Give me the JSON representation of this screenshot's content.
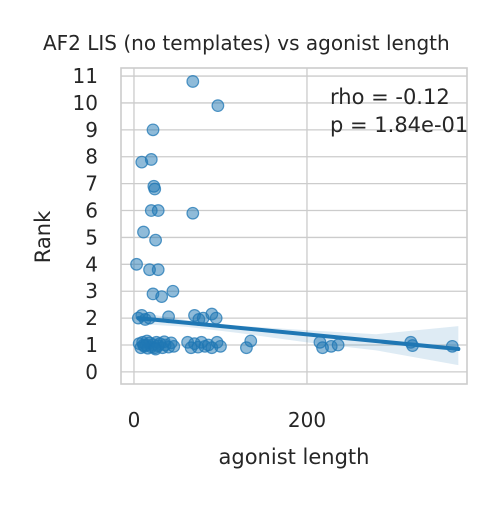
{
  "chart_data": {
    "type": "scatter",
    "title": "AF2 LIS (no templates) vs agonist length",
    "xlabel": "agonist length",
    "ylabel": "Rank",
    "xlim": [
      -15,
      385
    ],
    "ylim": [
      -0.45,
      11.3
    ],
    "x_ticks": [
      0,
      200
    ],
    "y_ticks": [
      0,
      1,
      2,
      3,
      4,
      5,
      6,
      7,
      8,
      9,
      10,
      11
    ],
    "grid": true,
    "annotations": [
      "rho = -0.12",
      "p = 1.84e-01"
    ],
    "regression": {
      "x_start": 5,
      "y_start": 2.0,
      "x_end": 375,
      "y_end": 0.85
    },
    "ci_band": [
      {
        "x": 5,
        "lower": 1.78,
        "upper": 2.22
      },
      {
        "x": 60,
        "lower": 1.68,
        "upper": 1.93
      },
      {
        "x": 120,
        "lower": 1.45,
        "upper": 1.72
      },
      {
        "x": 200,
        "lower": 1.1,
        "upper": 1.55
      },
      {
        "x": 280,
        "lower": 0.8,
        "upper": 1.4
      },
      {
        "x": 375,
        "lower": 0.25,
        "upper": 1.7
      }
    ],
    "points": [
      {
        "x": 68,
        "y": 10.8
      },
      {
        "x": 97,
        "y": 9.9
      },
      {
        "x": 22,
        "y": 9.0
      },
      {
        "x": 9,
        "y": 7.8
      },
      {
        "x": 20,
        "y": 7.9
      },
      {
        "x": 23,
        "y": 6.9
      },
      {
        "x": 24,
        "y": 6.8
      },
      {
        "x": 20,
        "y": 6.0
      },
      {
        "x": 28,
        "y": 6.0
      },
      {
        "x": 68,
        "y": 5.9
      },
      {
        "x": 11,
        "y": 5.2
      },
      {
        "x": 25,
        "y": 4.9
      },
      {
        "x": 3,
        "y": 4.0
      },
      {
        "x": 18,
        "y": 3.8
      },
      {
        "x": 28,
        "y": 3.8
      },
      {
        "x": 22,
        "y": 2.9
      },
      {
        "x": 32,
        "y": 2.8
      },
      {
        "x": 45,
        "y": 3.0
      },
      {
        "x": 5,
        "y": 2.0
      },
      {
        "x": 9,
        "y": 2.1
      },
      {
        "x": 13,
        "y": 1.95
      },
      {
        "x": 18,
        "y": 2.0
      },
      {
        "x": 40,
        "y": 2.05
      },
      {
        "x": 70,
        "y": 2.1
      },
      {
        "x": 75,
        "y": 1.95
      },
      {
        "x": 90,
        "y": 2.15
      },
      {
        "x": 95,
        "y": 2.0
      },
      {
        "x": 80,
        "y": 2.0
      },
      {
        "x": 6,
        "y": 1.05
      },
      {
        "x": 8,
        "y": 0.9
      },
      {
        "x": 10,
        "y": 1.1
      },
      {
        "x": 12,
        "y": 0.95
      },
      {
        "x": 14,
        "y": 1.0
      },
      {
        "x": 16,
        "y": 0.88
      },
      {
        "x": 18,
        "y": 1.08
      },
      {
        "x": 20,
        "y": 0.93
      },
      {
        "x": 22,
        "y": 1.02
      },
      {
        "x": 24,
        "y": 0.9
      },
      {
        "x": 26,
        "y": 1.1
      },
      {
        "x": 28,
        "y": 0.97
      },
      {
        "x": 30,
        "y": 1.05
      },
      {
        "x": 33,
        "y": 0.9
      },
      {
        "x": 36,
        "y": 1.0
      },
      {
        "x": 40,
        "y": 0.92
      },
      {
        "x": 43,
        "y": 1.08
      },
      {
        "x": 46,
        "y": 0.95
      },
      {
        "x": 15,
        "y": 1.15
      },
      {
        "x": 25,
        "y": 0.85
      },
      {
        "x": 35,
        "y": 1.12
      },
      {
        "x": 11,
        "y": 1.0
      },
      {
        "x": 62,
        "y": 1.1
      },
      {
        "x": 66,
        "y": 0.9
      },
      {
        "x": 70,
        "y": 1.05
      },
      {
        "x": 74,
        "y": 0.92
      },
      {
        "x": 78,
        "y": 1.1
      },
      {
        "x": 82,
        "y": 0.95
      },
      {
        "x": 86,
        "y": 1.0
      },
      {
        "x": 90,
        "y": 0.9
      },
      {
        "x": 96,
        "y": 1.1
      },
      {
        "x": 100,
        "y": 0.95
      },
      {
        "x": 130,
        "y": 0.9
      },
      {
        "x": 135,
        "y": 1.15
      },
      {
        "x": 215,
        "y": 1.1
      },
      {
        "x": 218,
        "y": 0.9
      },
      {
        "x": 228,
        "y": 0.95
      },
      {
        "x": 236,
        "y": 1.0
      },
      {
        "x": 320,
        "y": 1.1
      },
      {
        "x": 322,
        "y": 0.98
      },
      {
        "x": 368,
        "y": 0.95
      }
    ]
  }
}
